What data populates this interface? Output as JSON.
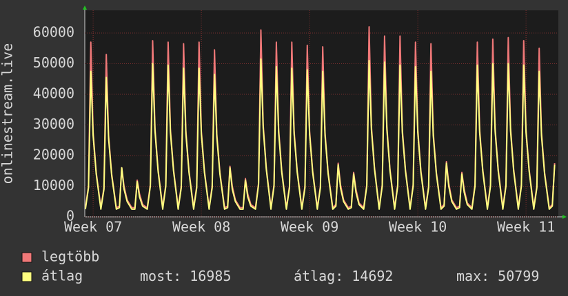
{
  "chart_data": {
    "type": "line",
    "ylabel": "onlinestream.live",
    "xlim": [
      -0.54,
      30.09
    ],
    "xticks": [
      {
        "value": 0,
        "label": "Week 07"
      },
      {
        "value": 7,
        "label": "Week 08"
      },
      {
        "value": 14,
        "label": "Week 09"
      },
      {
        "value": 21,
        "label": "Week 10"
      },
      {
        "value": 28,
        "label": "Week 11"
      }
    ],
    "ylim": [
      0,
      67400
    ],
    "yticks": [
      0,
      10000,
      20000,
      30000,
      40000,
      50000,
      60000
    ],
    "grid": true,
    "x": [
      -0.5,
      -0.3,
      -0.15,
      0,
      0.2,
      0.5,
      0.7,
      0.85,
      1,
      1.2,
      1.5,
      1.7,
      1.85,
      2,
      2.2,
      2.5,
      2.7,
      2.85,
      3,
      3.2,
      3.5,
      3.7,
      3.85,
      4,
      4.2,
      4.5,
      4.7,
      4.85,
      5,
      5.2,
      5.5,
      5.7,
      5.85,
      6,
      6.2,
      6.5,
      6.7,
      6.85,
      7,
      7.2,
      7.5,
      7.7,
      7.85,
      8,
      8.2,
      8.5,
      8.7,
      8.85,
      9,
      9.2,
      9.5,
      9.7,
      9.85,
      10,
      10.2,
      10.5,
      10.7,
      10.85,
      11,
      11.2,
      11.5,
      11.7,
      11.85,
      12,
      12.2,
      12.5,
      12.7,
      12.85,
      13,
      13.2,
      13.5,
      13.7,
      13.85,
      14,
      14.2,
      14.5,
      14.7,
      14.85,
      15,
      15.2,
      15.5,
      15.7,
      15.85,
      16,
      16.2,
      16.5,
      16.7,
      16.85,
      17,
      17.2,
      17.5,
      17.7,
      17.85,
      18,
      18.2,
      18.5,
      18.7,
      18.85,
      19,
      19.2,
      19.5,
      19.7,
      19.85,
      20,
      20.2,
      20.5,
      20.7,
      20.85,
      21,
      21.2,
      21.5,
      21.7,
      21.85,
      22,
      22.2,
      22.5,
      22.7,
      22.85,
      23,
      23.2,
      23.5,
      23.7,
      23.85,
      24,
      24.2,
      24.5,
      24.7,
      24.85,
      25,
      25.2,
      25.5,
      25.7,
      25.85,
      26,
      26.2,
      26.5,
      26.7,
      26.85,
      27,
      27.2,
      27.5,
      27.7,
      27.85,
      28,
      28.2,
      28.5,
      28.7,
      28.85,
      29,
      29.2,
      29.5,
      29.7,
      29.85
    ],
    "series": [
      {
        "name": "legtöbb",
        "color": "#f07878",
        "values": [
          3000,
          10000,
          57000,
          27500,
          14500,
          3000,
          9500,
          53000,
          26500,
          14000,
          3000,
          3500,
          16000,
          10000,
          5500,
          3000,
          3000,
          12000,
          7500,
          4000,
          3000,
          10500,
          57500,
          29000,
          15500,
          3000,
          10500,
          57000,
          28500,
          15500,
          3000,
          10000,
          56500,
          28000,
          15000,
          3000,
          10000,
          57000,
          28000,
          15000,
          3000,
          10000,
          54500,
          27000,
          14500,
          3000,
          3500,
          16500,
          10000,
          5500,
          3000,
          3000,
          12500,
          7500,
          4000,
          3000,
          11000,
          61000,
          30000,
          16000,
          3000,
          10500,
          57000,
          28500,
          15000,
          3000,
          10000,
          57000,
          28000,
          15000,
          3000,
          10000,
          56000,
          28000,
          15000,
          3000,
          10000,
          55500,
          27500,
          14500,
          3000,
          4000,
          17500,
          10500,
          5500,
          3000,
          3500,
          14500,
          9000,
          4500,
          3000,
          10500,
          62000,
          29500,
          16000,
          3000,
          10500,
          59000,
          29500,
          15500,
          3000,
          10500,
          59000,
          28500,
          15500,
          3000,
          10500,
          57000,
          28500,
          15000,
          3000,
          10000,
          56500,
          27500,
          14500,
          3000,
          4000,
          18000,
          11000,
          5500,
          3000,
          3500,
          14500,
          9000,
          4500,
          3000,
          10500,
          57000,
          28500,
          15500,
          3000,
          10500,
          58000,
          29000,
          15500,
          3000,
          10500,
          58500,
          29000,
          15500,
          3000,
          10500,
          57500,
          28500,
          15500,
          3000,
          10000,
          55000,
          27500,
          14500,
          3000,
          4000,
          17500
        ]
      },
      {
        "name": "átlag",
        "color": "#ffff80",
        "values": [
          2500,
          9500,
          47500,
          26500,
          14000,
          2500,
          9000,
          45500,
          25500,
          13500,
          2500,
          3000,
          16000,
          9000,
          5000,
          2500,
          2500,
          11500,
          6500,
          3500,
          2500,
          10000,
          50000,
          28000,
          15000,
          2500,
          10000,
          49500,
          27500,
          15000,
          2500,
          9500,
          48500,
          27000,
          14500,
          2500,
          9500,
          48500,
          27000,
          14500,
          2500,
          9500,
          46500,
          26000,
          14000,
          2500,
          3000,
          16000,
          9000,
          5000,
          2500,
          2500,
          12000,
          6500,
          3500,
          2500,
          10500,
          51500,
          29000,
          15500,
          2500,
          10000,
          49000,
          27500,
          14500,
          2500,
          9500,
          48500,
          27000,
          14500,
          2500,
          9500,
          48000,
          27000,
          14500,
          2500,
          9500,
          47500,
          26500,
          14000,
          2500,
          3500,
          17000,
          9500,
          5000,
          2500,
          3000,
          14000,
          8000,
          4000,
          2500,
          10000,
          51000,
          28500,
          15500,
          2500,
          10000,
          50500,
          28500,
          15000,
          2500,
          10000,
          49500,
          27500,
          15000,
          2500,
          10000,
          49000,
          27500,
          14500,
          2500,
          9500,
          47500,
          26500,
          14000,
          2500,
          3500,
          17500,
          10000,
          5000,
          2500,
          3000,
          14000,
          8000,
          4000,
          2500,
          10000,
          49500,
          27500,
          15000,
          2500,
          10000,
          50000,
          28000,
          15000,
          2500,
          10000,
          50000,
          28000,
          15000,
          2500,
          10000,
          49500,
          27500,
          15000,
          2500,
          9500,
          47500,
          26500,
          14000,
          2500,
          3500,
          17000
        ]
      }
    ],
    "stats": [
      {
        "label": "most:",
        "value": 16985
      },
      {
        "label": "átlag:",
        "value": 14692
      },
      {
        "label": "max:",
        "value": 50799
      }
    ]
  }
}
